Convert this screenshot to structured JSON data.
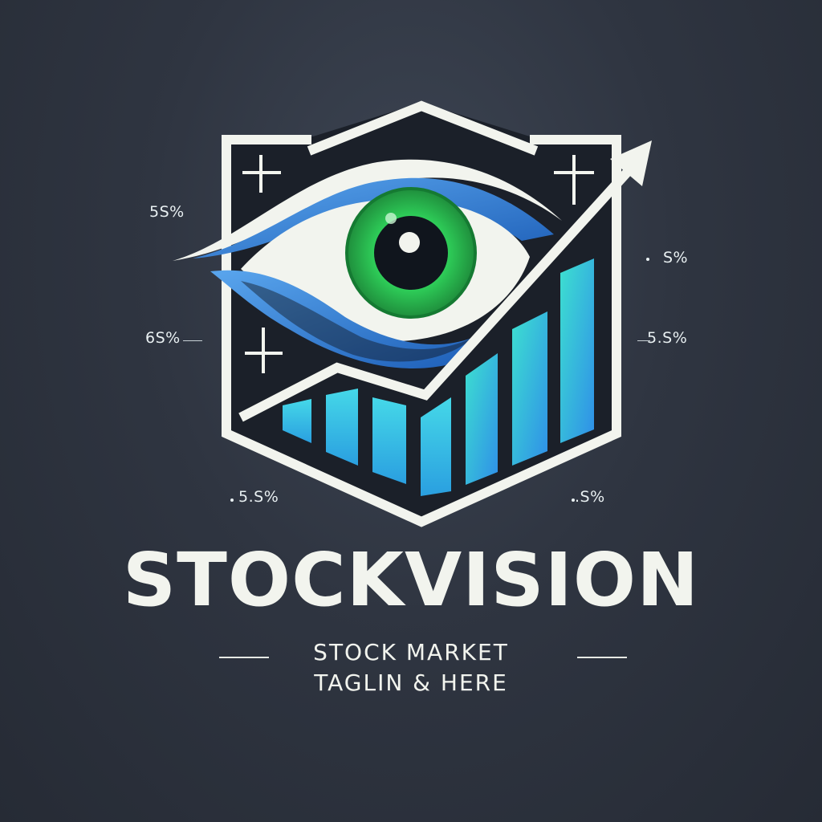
{
  "brand": {
    "name": "STOCKVISION",
    "tagline_line1": "STOCK MARKET",
    "tagline_line2": "TAGLIN & HERE"
  },
  "labels": {
    "top_left": "5S%",
    "mid_left": "6S%",
    "top_right": "S%",
    "mid_right": "5.S%",
    "bottom_left": "5.S%",
    "bottom_right": ".S%"
  },
  "colors": {
    "background": "#2f3541",
    "outline": "#f2f4ee",
    "iris": "#2fd15a",
    "eye_blue": "#3a8ee6",
    "bars_cyan": "#3fd0e6",
    "text": "#f2f4ee"
  },
  "icons": {
    "emblem": "eye-chart-logo",
    "trend": "arrow-up-right-icon",
    "cross": "plus-mark-icon"
  }
}
